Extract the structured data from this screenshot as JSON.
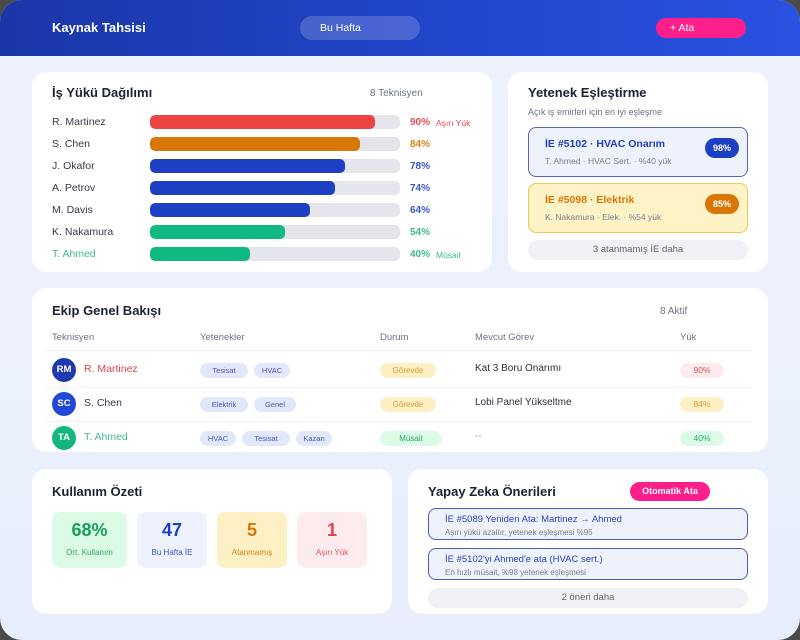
{
  "header": {
    "title": "Kaynak Tahsisi",
    "period_selector": "Bu Hafta",
    "assign_button": "+ Ata"
  },
  "workload": {
    "title": "İş Yükü Dağılımı",
    "meta": "8 Teknisyen",
    "rows": [
      {
        "name": "R. Martinez",
        "pct": 90,
        "pct_label": "90%",
        "tag": "Aşırı Yük",
        "color": "#ef4444",
        "text_color": "#e24a55",
        "name_color": "#333a48"
      },
      {
        "name": "S. Chen",
        "pct": 84,
        "pct_label": "84%",
        "tag": "",
        "color": "#d97706",
        "text_color": "#d98310",
        "name_color": "#333a48"
      },
      {
        "name": "J. Okafor",
        "pct": 78,
        "pct_label": "78%",
        "tag": "",
        "color": "#1d3fc4",
        "text_color": "#3b55c9",
        "name_color": "#333a48"
      },
      {
        "name": "A. Petrov",
        "pct": 74,
        "pct_label": "74%",
        "tag": "",
        "color": "#1d3fc4",
        "text_color": "#3b55c9",
        "name_color": "#333a48"
      },
      {
        "name": "M. Davis",
        "pct": 64,
        "pct_label": "64%",
        "tag": "",
        "color": "#1d3fc4",
        "text_color": "#3b55c9",
        "name_color": "#333a48"
      },
      {
        "name": "K. Nakamura",
        "pct": 54,
        "pct_label": "54%",
        "tag": "",
        "color": "#10b981",
        "text_color": "#3dbb8a",
        "name_color": "#333a48"
      },
      {
        "name": "T. Ahmed",
        "pct": 40,
        "pct_label": "40%",
        "tag": "Müsait",
        "color": "#10b981",
        "text_color": "#3dbb8a",
        "name_color": "#3dbb8a"
      }
    ]
  },
  "skill_match": {
    "title": "Yetenek Eşleştirme",
    "subtitle": "Açık iş emirleri için en iyi eşleşme",
    "matches": [
      {
        "title": "İE #5102 · HVAC Onarım",
        "detail": "T. Ahmed · HVAC Sert. · %40 yük",
        "score": "98%"
      },
      {
        "title": "İE #5098 · Elektrik",
        "detail": "K. Nakamura · Elek. · %54 yük",
        "score": "85%"
      }
    ],
    "more": "3 atanmamış İE daha"
  },
  "team": {
    "title": "Ekip Genel Bakışı",
    "meta": "8 Aktif",
    "columns": [
      "Teknisyen",
      "Yetenekler",
      "Durum",
      "Mevcut Görev",
      "Yük"
    ],
    "rows": [
      {
        "initials": "RM",
        "name": "R. Martinez",
        "skills": [
          "Tesisat",
          "HVAC"
        ],
        "status": "Görevde",
        "task": "Kat 3 Boru Onarımı",
        "load": "90%"
      },
      {
        "initials": "SC",
        "name": "S. Chen",
        "skills": [
          "Elektrik",
          "Genel"
        ],
        "status": "Görevde",
        "task": "Lobi Panel Yükseltme",
        "load": "84%"
      },
      {
        "initials": "TA",
        "name": "T. Ahmed",
        "skills": [
          "HVAC",
          "Tesisat",
          "Kazan"
        ],
        "status": "Müsait",
        "task": "--",
        "load": "40%"
      }
    ]
  },
  "summary": {
    "title": "Kullanım Özeti",
    "stats": [
      {
        "value": "68%",
        "label": "Ort. Kullanım"
      },
      {
        "value": "47",
        "label": "Bu Hafta İE"
      },
      {
        "value": "5",
        "label": "Atanmamış"
      },
      {
        "value": "1",
        "label": "Aşırı Yük"
      }
    ]
  },
  "ai": {
    "title": "Yapay Zeka Önerileri",
    "auto_button": "Otomatik Ata",
    "suggestions": [
      {
        "title": "İE #5089 Yeniden Ata: Martinez → Ahmed",
        "detail": "Aşırı yükü azaltır, yetenek eşleşmesi %95"
      },
      {
        "title": "İE #5102'yi Ahmed'e ata (HVAC sert.)",
        "detail": "En hızlı müsait, %98 yetenek eşleşmesi"
      }
    ],
    "more": "2 öneri daha"
  },
  "colors": {
    "header_start": "#1a37a8",
    "header_end": "#2a52e0",
    "accent_pink": "#ff1f8a",
    "danger": "#ef4444",
    "warning": "#d97706",
    "primary": "#1d3fc4",
    "success": "#10b981"
  }
}
